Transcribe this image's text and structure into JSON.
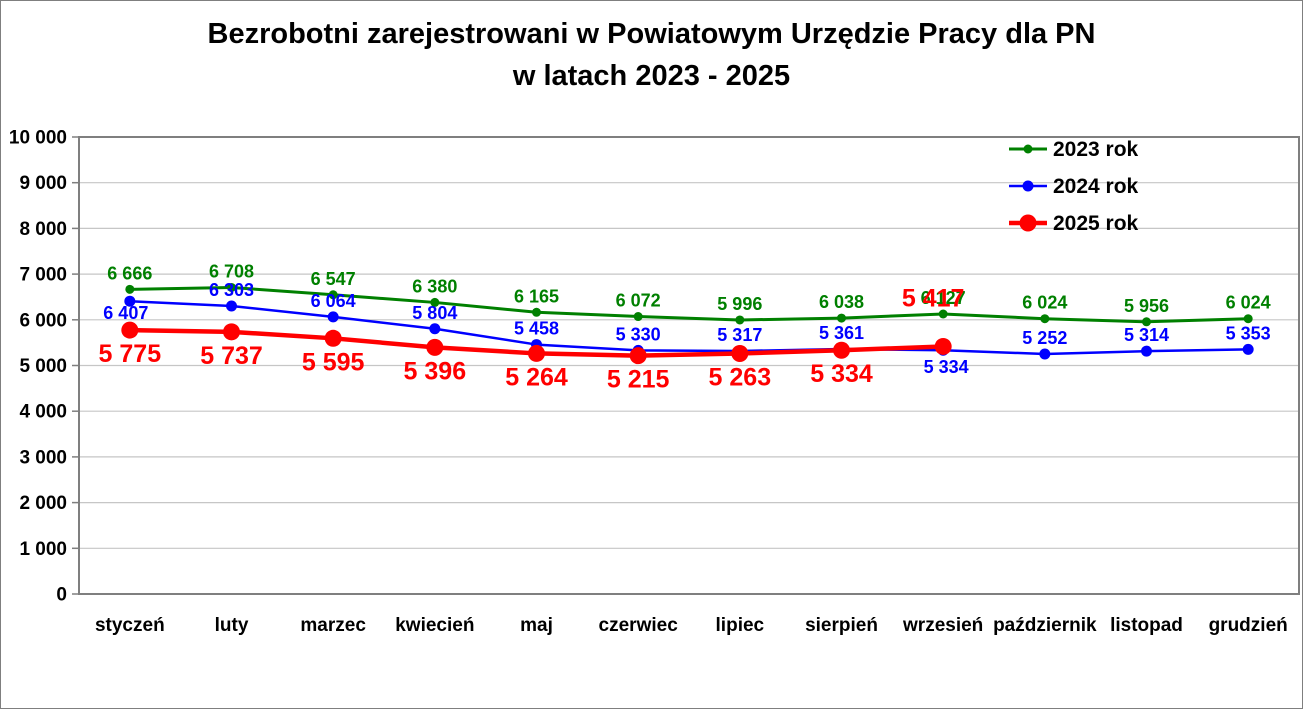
{
  "title": {
    "line1": "Bezrobotni zarejestrowani w Powiatowym Urzędzie Pracy dla PN",
    "line2": "w latach 2023 - 2025"
  },
  "chart_data": {
    "type": "line",
    "title": "Bezrobotni zarejestrowani w Powiatowym Urzędzie Pracy dla PN w latach 2023 - 2025",
    "categories": [
      "styczeń",
      "luty",
      "marzec",
      "kwiecień",
      "maj",
      "czerwiec",
      "lipiec",
      "sierpień",
      "wrzesień",
      "październik",
      "listopad",
      "grudzień"
    ],
    "series": [
      {
        "name": "2023 rok",
        "color": "#008000",
        "values": [
          6666,
          6708,
          6547,
          6380,
          6165,
          6072,
          5996,
          6038,
          6127,
          6024,
          5956,
          6024
        ],
        "marker_radius": 4.5,
        "line_width": 3,
        "label_font_size": 18,
        "label_position": "above",
        "label_overrides": {}
      },
      {
        "name": "2024 rok",
        "color": "#0000ff",
        "values": [
          6407,
          6303,
          6064,
          5804,
          5458,
          5330,
          5317,
          5361,
          5334,
          5252,
          5314,
          5353
        ],
        "marker_radius": 5.5,
        "line_width": 2.5,
        "label_font_size": 18,
        "label_position": "above",
        "label_overrides": {
          "0": {
            "dy": 18,
            "dx": -4
          },
          "8": {
            "dy": 23,
            "dx": 3
          }
        }
      },
      {
        "name": "2025 rok",
        "color": "#ff0000",
        "values": [
          5775,
          5737,
          5595,
          5396,
          5264,
          5215,
          5263,
          5334,
          5417
        ],
        "marker_radius": 8.5,
        "line_width": 4.5,
        "label_font_size": 25,
        "label_position": "below",
        "label_overrides": {
          "8": {
            "dy": -40,
            "dx": -10
          }
        }
      }
    ],
    "xlabel": "",
    "ylabel": "",
    "ylim": [
      0,
      10000
    ],
    "ytick_step": 1000,
    "ytick_labels": [
      "0",
      "1 000",
      "2 000",
      "3 000",
      "4 000",
      "5 000",
      "6 000",
      "7 000",
      "8 000",
      "9 000",
      "10 000"
    ],
    "grid": true,
    "legend_position": "top-right",
    "legend_entries": [
      "2023 rok",
      "2024 rok",
      "2025 rok"
    ],
    "number_format": "space-thousands",
    "colors": {
      "grid": "#c6c6c6",
      "plot_border": "#7f7f7f",
      "axis_text": "#000000",
      "background": "#ffffff"
    }
  }
}
